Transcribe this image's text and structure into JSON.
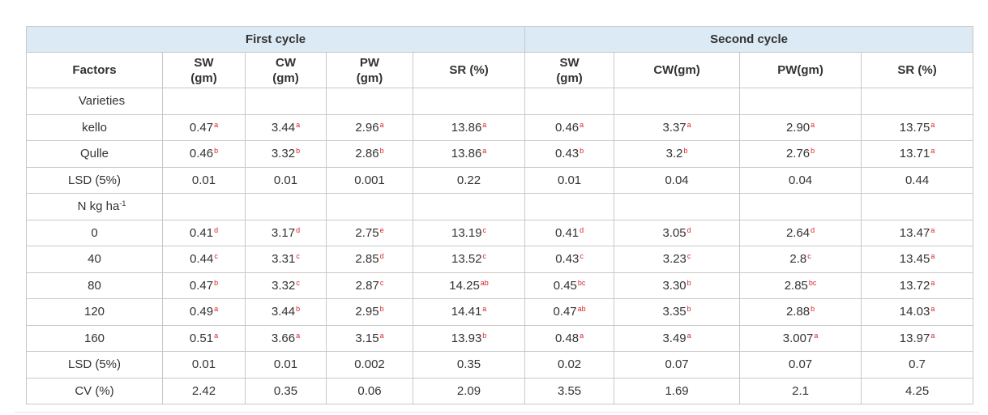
{
  "table": {
    "cycle_headers": {
      "first": "First cycle",
      "second": "Second cycle"
    },
    "columns": [
      {
        "line1": "Factors",
        "line2": ""
      },
      {
        "line1": "SW",
        "line2": "(gm)"
      },
      {
        "line1": "CW",
        "line2": "(gm)"
      },
      {
        "line1": "PW",
        "line2": "(gm)"
      },
      {
        "line1": "SR (%)",
        "line2": ""
      },
      {
        "line1": "SW",
        "line2": "(gm)"
      },
      {
        "line1": "CW(gm)",
        "line2": ""
      },
      {
        "line1": "PW(gm)",
        "line2": ""
      },
      {
        "line1": "SR (%)",
        "line2": ""
      }
    ],
    "rows": [
      {
        "factor": "Varieties",
        "kind": "group",
        "values": []
      },
      {
        "factor": "kello",
        "kind": "level",
        "values": [
          [
            "0.47",
            "a"
          ],
          [
            "3.44",
            "a"
          ],
          [
            "2.96",
            "a"
          ],
          [
            "13.86",
            "a"
          ],
          [
            "0.46",
            "a"
          ],
          [
            "3.37",
            "a"
          ],
          [
            "2.90",
            "a"
          ],
          [
            "13.75",
            "a"
          ]
        ]
      },
      {
        "factor": "Qulle",
        "kind": "level",
        "values": [
          [
            "0.46",
            "b"
          ],
          [
            "3.32",
            "b"
          ],
          [
            "2.86",
            "b"
          ],
          [
            "13.86",
            "a"
          ],
          [
            "0.43",
            "b"
          ],
          [
            "3.2",
            "b"
          ],
          [
            "2.76",
            "b"
          ],
          [
            "13.71",
            "a"
          ]
        ]
      },
      {
        "factor": "LSD (5%)",
        "kind": "level",
        "values": [
          [
            "0.01",
            ""
          ],
          [
            "0.01",
            ""
          ],
          [
            "0.001",
            ""
          ],
          [
            "0.22",
            ""
          ],
          [
            "0.01",
            ""
          ],
          [
            "0.04",
            ""
          ],
          [
            "0.04",
            ""
          ],
          [
            "0.44",
            ""
          ]
        ]
      },
      {
        "factor": "N kg ha",
        "factor_sup": "-1",
        "kind": "group",
        "values": []
      },
      {
        "factor": "0",
        "kind": "level",
        "values": [
          [
            "0.41",
            "d"
          ],
          [
            "3.17",
            "d"
          ],
          [
            "2.75",
            "e"
          ],
          [
            "13.19",
            "c"
          ],
          [
            "0.41",
            "d"
          ],
          [
            "3.05",
            "d"
          ],
          [
            "2.64",
            "d"
          ],
          [
            "13.47",
            "a"
          ]
        ]
      },
      {
        "factor": "40",
        "kind": "level",
        "values": [
          [
            "0.44",
            "c"
          ],
          [
            "3.31",
            "c"
          ],
          [
            "2.85",
            "d"
          ],
          [
            "13.52",
            "c"
          ],
          [
            "0.43",
            "c"
          ],
          [
            "3.23",
            "c"
          ],
          [
            "2.8",
            "c"
          ],
          [
            "13.45",
            "a"
          ]
        ]
      },
      {
        "factor": "80",
        "kind": "level",
        "values": [
          [
            "0.47",
            "b"
          ],
          [
            "3.32",
            "c"
          ],
          [
            "2.87",
            "c"
          ],
          [
            "14.25",
            "ab"
          ],
          [
            "0.45",
            "bc"
          ],
          [
            "3.30",
            "b"
          ],
          [
            "2.85",
            "bc"
          ],
          [
            "13.72",
            "a"
          ]
        ]
      },
      {
        "factor": "120",
        "kind": "level",
        "values": [
          [
            "0.49",
            "a"
          ],
          [
            "3.44",
            "b"
          ],
          [
            "2.95",
            "b"
          ],
          [
            "14.41",
            "a"
          ],
          [
            "0.47",
            "ab"
          ],
          [
            "3.35",
            "b"
          ],
          [
            "2.88",
            "b"
          ],
          [
            "14.03",
            "a"
          ]
        ]
      },
      {
        "factor": "160",
        "kind": "level",
        "values": [
          [
            "0.51",
            "a"
          ],
          [
            "3.66",
            "a"
          ],
          [
            "3.15",
            "a"
          ],
          [
            "13.93",
            "b"
          ],
          [
            "0.48",
            "a"
          ],
          [
            "3.49",
            "a"
          ],
          [
            "3.007",
            "a"
          ],
          [
            "13.97",
            "a"
          ]
        ]
      },
      {
        "factor": "LSD (5%)",
        "kind": "level",
        "values": [
          [
            "0.01",
            ""
          ],
          [
            "0.01",
            ""
          ],
          [
            "0.002",
            ""
          ],
          [
            "0.35",
            ""
          ],
          [
            "0.02",
            ""
          ],
          [
            "0.07",
            ""
          ],
          [
            "0.07",
            ""
          ],
          [
            "0.7",
            ""
          ]
        ]
      },
      {
        "factor": "CV (%)",
        "kind": "level",
        "values": [
          [
            "2.42",
            ""
          ],
          [
            "0.35",
            ""
          ],
          [
            "0.06",
            ""
          ],
          [
            "2.09",
            ""
          ],
          [
            "3.55",
            ""
          ],
          [
            "1.69",
            ""
          ],
          [
            "2.1",
            ""
          ],
          [
            "4.25",
            ""
          ]
        ]
      }
    ]
  }
}
